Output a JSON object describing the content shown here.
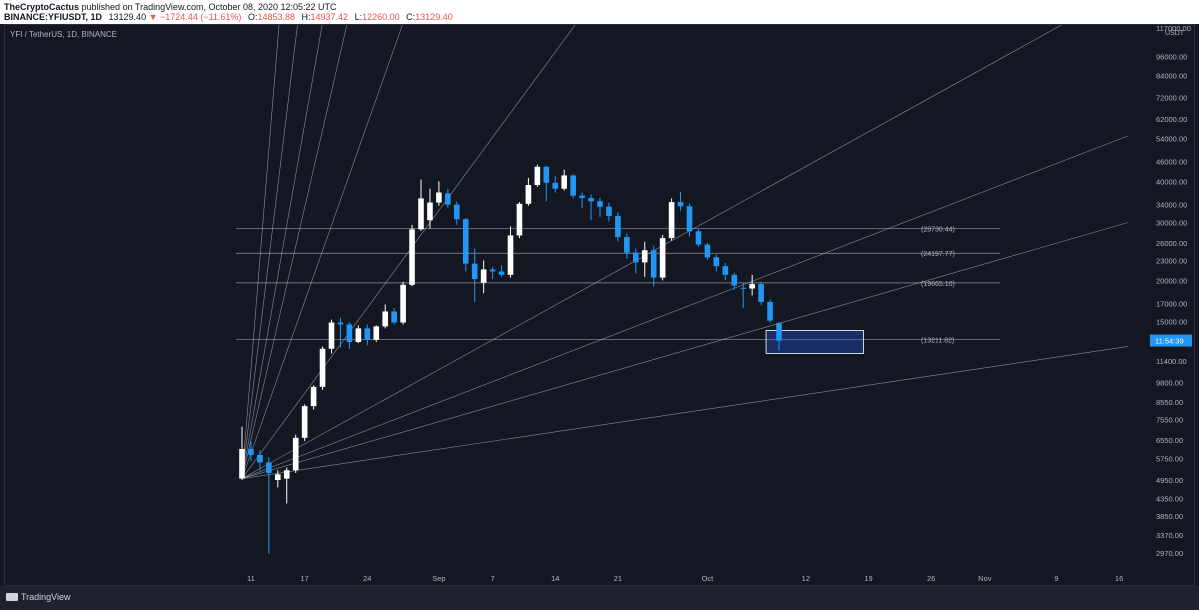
{
  "header": {
    "author": "TheCryptoCactus",
    "published_text": "published on TradingView.com, October 08, 2020 12:05:22 UTC",
    "symbol_line": "BINANCE:YFIUSDT, 1D",
    "last_price": "13129.40",
    "change": "−1724.44 (−11.61%)",
    "o_label": "O:",
    "o_value": "14853.88",
    "h_label": "H:",
    "h_value": "14937.42",
    "l_label": "L:",
    "l_value": "12260.00",
    "c_label": "C:",
    "c_value": "13129.40"
  },
  "chart_title": "YFI / TetherUS, 1D, BINANCE",
  "footer": {
    "brand": "TradingView"
  },
  "colors": {
    "background": "#131722",
    "bull": "#ffffff",
    "bear": "#2196f3",
    "grid_line": "#b2b5be",
    "down_text": "#ef5350",
    "price_tag": "#2196f3"
  },
  "chart_data": {
    "type": "candlestick",
    "title": "YFI / TetherUS, 1D, BINANCE",
    "yscale": "log",
    "ylim": [
      2700,
      117000
    ],
    "y_axis_unit": "USDT",
    "y_ticks": [
      "2970.00",
      "3370.00",
      "3850.00",
      "4350.00",
      "4950.00",
      "5750.00",
      "6550.00",
      "7550.00",
      "8550.00",
      "9800.00",
      "11400.00",
      "15000.00",
      "17000.00",
      "20000.00",
      "23000.00",
      "26000.00",
      "30000.00",
      "34000.00",
      "40000.00",
      "46000.00",
      "54000.00",
      "62000.00",
      "72000.00",
      "84000.00",
      "96000.00",
      "117000.00"
    ],
    "x_ticks": [
      "11",
      "17",
      "24",
      "Sep",
      "7",
      "14",
      "21",
      "Oct",
      "12",
      "19",
      "26",
      "Nov",
      "9",
      "16"
    ],
    "current_price_tag": "11:54:39",
    "x_start_date": "2020-08-10",
    "candles": [
      {
        "o": 5000,
        "h": 7200,
        "l": 4950,
        "c": 6150
      },
      {
        "o": 6150,
        "h": 6500,
        "l": 5650,
        "c": 5900
      },
      {
        "o": 5900,
        "h": 6100,
        "l": 5300,
        "c": 5600
      },
      {
        "o": 5600,
        "h": 5800,
        "l": 2950,
        "c": 5200
      },
      {
        "o": 4950,
        "h": 5300,
        "l": 4700,
        "c": 5150
      },
      {
        "o": 5000,
        "h": 5400,
        "l": 4200,
        "c": 5300
      },
      {
        "o": 5300,
        "h": 6800,
        "l": 5200,
        "c": 6650
      },
      {
        "o": 6650,
        "h": 8400,
        "l": 6500,
        "c": 8300
      },
      {
        "o": 8300,
        "h": 9600,
        "l": 8100,
        "c": 9500
      },
      {
        "o": 9500,
        "h": 12600,
        "l": 9300,
        "c": 12400
      },
      {
        "o": 12400,
        "h": 15200,
        "l": 12000,
        "c": 14900
      },
      {
        "o": 14900,
        "h": 15400,
        "l": 12500,
        "c": 14700
      },
      {
        "o": 14700,
        "h": 14900,
        "l": 12400,
        "c": 13000
      },
      {
        "o": 13000,
        "h": 14600,
        "l": 12900,
        "c": 14300
      },
      {
        "o": 14300,
        "h": 14700,
        "l": 12700,
        "c": 13200
      },
      {
        "o": 13200,
        "h": 14600,
        "l": 13000,
        "c": 14500
      },
      {
        "o": 14500,
        "h": 16900,
        "l": 14300,
        "c": 16100
      },
      {
        "o": 16100,
        "h": 16500,
        "l": 14700,
        "c": 14900
      },
      {
        "o": 14900,
        "h": 19800,
        "l": 14700,
        "c": 19400
      },
      {
        "o": 19400,
        "h": 29500,
        "l": 19200,
        "c": 28600
      },
      {
        "o": 28600,
        "h": 40500,
        "l": 28300,
        "c": 35500
      },
      {
        "o": 30500,
        "h": 38000,
        "l": 28800,
        "c": 34500
      },
      {
        "o": 34500,
        "h": 40000,
        "l": 33700,
        "c": 37000
      },
      {
        "o": 36800,
        "h": 38000,
        "l": 33300,
        "c": 34000
      },
      {
        "o": 34000,
        "h": 34700,
        "l": 29500,
        "c": 30700
      },
      {
        "o": 30700,
        "h": 31000,
        "l": 21300,
        "c": 22500
      },
      {
        "o": 22500,
        "h": 25000,
        "l": 17200,
        "c": 20200
      },
      {
        "o": 19700,
        "h": 23000,
        "l": 18300,
        "c": 21600
      },
      {
        "o": 21600,
        "h": 22000,
        "l": 20200,
        "c": 21300
      },
      {
        "o": 21300,
        "h": 22200,
        "l": 20500,
        "c": 20800
      },
      {
        "o": 20800,
        "h": 29200,
        "l": 20400,
        "c": 27400
      },
      {
        "o": 27400,
        "h": 34600,
        "l": 26900,
        "c": 34200
      },
      {
        "o": 34200,
        "h": 41000,
        "l": 33700,
        "c": 39000
      },
      {
        "o": 39000,
        "h": 45000,
        "l": 38500,
        "c": 44300
      },
      {
        "o": 44300,
        "h": 44700,
        "l": 34800,
        "c": 39600
      },
      {
        "o": 39600,
        "h": 41500,
        "l": 37000,
        "c": 38000
      },
      {
        "o": 38000,
        "h": 43400,
        "l": 37500,
        "c": 41700
      },
      {
        "o": 41700,
        "h": 42000,
        "l": 35500,
        "c": 36200
      },
      {
        "o": 36200,
        "h": 37000,
        "l": 33200,
        "c": 35600
      },
      {
        "o": 35600,
        "h": 36500,
        "l": 30500,
        "c": 34800
      },
      {
        "o": 34800,
        "h": 35700,
        "l": 31200,
        "c": 33500
      },
      {
        "o": 33500,
        "h": 34500,
        "l": 30200,
        "c": 31400
      },
      {
        "o": 31400,
        "h": 32200,
        "l": 26300,
        "c": 27100
      },
      {
        "o": 27100,
        "h": 27800,
        "l": 23300,
        "c": 24300
      },
      {
        "o": 24300,
        "h": 25000,
        "l": 21000,
        "c": 22700
      },
      {
        "o": 22700,
        "h": 26200,
        "l": 20500,
        "c": 24700
      },
      {
        "o": 24700,
        "h": 25500,
        "l": 19200,
        "c": 20400
      },
      {
        "o": 20400,
        "h": 27500,
        "l": 20000,
        "c": 26900
      },
      {
        "o": 26900,
        "h": 35500,
        "l": 26400,
        "c": 34600
      },
      {
        "o": 34600,
        "h": 37200,
        "l": 32600,
        "c": 33600
      },
      {
        "o": 33600,
        "h": 34200,
        "l": 27200,
        "c": 28200
      },
      {
        "o": 28200,
        "h": 28600,
        "l": 25300,
        "c": 25700
      },
      {
        "o": 25700,
        "h": 26000,
        "l": 23100,
        "c": 23500
      },
      {
        "o": 23500,
        "h": 24000,
        "l": 21300,
        "c": 22100
      },
      {
        "o": 22100,
        "h": 22600,
        "l": 20000,
        "c": 20800
      },
      {
        "o": 20800,
        "h": 21100,
        "l": 18700,
        "c": 19300
      },
      {
        "o": 19000,
        "h": 19700,
        "l": 16500,
        "c": 18900
      },
      {
        "o": 18900,
        "h": 20800,
        "l": 18000,
        "c": 19500
      },
      {
        "o": 19500,
        "h": 19800,
        "l": 16800,
        "c": 17200
      },
      {
        "o": 17200,
        "h": 17500,
        "l": 14900,
        "c": 15100
      },
      {
        "o": 14853.88,
        "h": 14937.42,
        "l": 12260,
        "c": 13129.4
      }
    ],
    "horizontal_levels": [
      {
        "label": "(28730.44)",
        "value": 28730.44
      },
      {
        "label": "(24197.77)",
        "value": 24197.77
      },
      {
        "label": "(19665.10)",
        "value": 19665.1
      },
      {
        "label": "(13211.82)",
        "value": 13211.82
      }
    ],
    "support_zone": {
      "from_day": 59,
      "to_day": 69,
      "low": 12000,
      "high": 14100
    },
    "fan_origin": {
      "day": 0,
      "price": 5000
    },
    "fan_targets": [
      {
        "day": 6,
        "price": 500000
      },
      {
        "day": 9,
        "price": 500000
      },
      {
        "day": 13,
        "price": 500000
      },
      {
        "day": 17,
        "price": 500000
      },
      {
        "day": 26,
        "price": 500000
      },
      {
        "day": 54,
        "price": 500000
      },
      {
        "day": 94,
        "price": 130000
      },
      {
        "day": 99,
        "price": 55000
      },
      {
        "day": 99,
        "price": 30000
      },
      {
        "day": 99,
        "price": 12600
      }
    ]
  }
}
